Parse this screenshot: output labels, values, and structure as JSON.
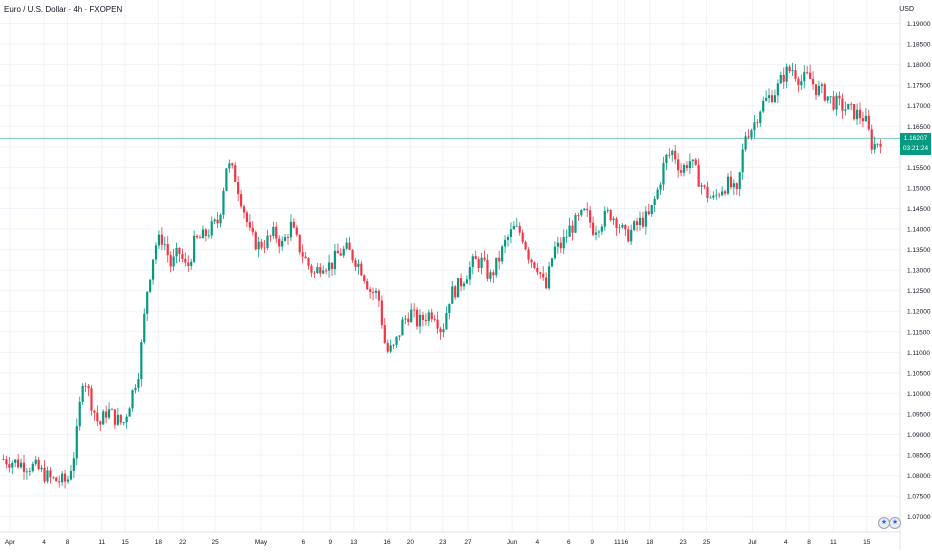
{
  "header": {
    "title": "Euro / U.S. Dollar · 4h · FXOPEN",
    "currency": "USD"
  },
  "price_badge": {
    "price": "1.16207",
    "countdown": "03:21:24"
  },
  "colors": {
    "up": "#089981",
    "down": "#f23645",
    "grid": "#f0f3fa",
    "price_line": "#089981"
  },
  "icons": [
    "us-flag-icon",
    "us-flag-icon"
  ],
  "chart_data": {
    "type": "candlestick",
    "title": "Euro / U.S. Dollar · 4h · FXOPEN",
    "ylim": [
      1.0675,
      1.195
    ],
    "y_ticks": [
      "1.19000",
      "1.18500",
      "1.18000",
      "1.17500",
      "1.17000",
      "1.16500",
      "1.16000",
      "1.15500",
      "1.15000",
      "1.14500",
      "1.14000",
      "1.13500",
      "1.13000",
      "1.12500",
      "1.12000",
      "1.11500",
      "1.11000",
      "1.10500",
      "1.10000",
      "1.09500",
      "1.09000",
      "1.08500",
      "1.08000",
      "1.07500",
      "1.07000"
    ],
    "x_ticks": [
      "Apr",
      "4",
      "8",
      "11",
      "15",
      "18",
      "22",
      "25",
      "May",
      "6",
      "9",
      "13",
      "16",
      "20",
      "23",
      "27",
      "Jun",
      "4",
      "6",
      "9",
      "11",
      "16",
      "18",
      "23",
      "25",
      "Jul",
      "4",
      "8",
      "11",
      "15"
    ],
    "current_price": 1.16207,
    "grid": true,
    "close_path": [
      [
        0,
        1.084
      ],
      [
        4,
        1.082
      ],
      [
        6,
        1.079
      ],
      [
        8,
        1.0785
      ],
      [
        9,
        1.0865
      ],
      [
        10,
        1.105
      ],
      [
        11,
        1.098
      ],
      [
        12,
        1.092
      ],
      [
        13,
        1.096
      ],
      [
        14,
        1.094
      ],
      [
        15,
        1.0925
      ],
      [
        16,
        1.099
      ],
      [
        17,
        1.106
      ],
      [
        18,
        1.125
      ],
      [
        19,
        1.136
      ],
      [
        20,
        1.138
      ],
      [
        21,
        1.131
      ],
      [
        22,
        1.1345
      ],
      [
        23,
        1.13
      ],
      [
        24,
        1.137
      ],
      [
        25,
        1.138
      ],
      [
        26,
        1.14
      ],
      [
        27,
        1.142
      ],
      [
        28,
        1.156
      ],
      [
        29,
        1.153
      ],
      [
        30,
        1.146
      ],
      [
        31,
        1.138
      ],
      [
        32,
        1.136
      ],
      [
        33,
        1.137
      ],
      [
        34,
        1.139
      ],
      [
        35,
        1.136
      ],
      [
        36,
        1.141
      ],
      [
        37,
        1.136
      ],
      [
        38,
        1.132
      ],
      [
        39,
        1.129
      ],
      [
        40,
        1.132
      ],
      [
        41,
        1.131
      ],
      [
        42,
        1.134
      ],
      [
        43,
        1.135
      ],
      [
        44,
        1.133
      ],
      [
        45,
        1.13
      ],
      [
        46,
        1.125
      ],
      [
        47,
        1.124
      ],
      [
        48,
        1.11
      ],
      [
        49,
        1.111
      ],
      [
        50,
        1.117
      ],
      [
        51,
        1.12
      ],
      [
        52,
        1.117
      ],
      [
        53,
        1.119
      ],
      [
        54,
        1.12
      ],
      [
        55,
        1.115
      ],
      [
        56,
        1.124
      ],
      [
        57,
        1.126
      ],
      [
        58,
        1.129
      ],
      [
        59,
        1.132
      ],
      [
        60,
        1.132
      ],
      [
        61,
        1.128
      ],
      [
        62,
        1.132
      ],
      [
        63,
        1.137
      ],
      [
        64,
        1.14
      ],
      [
        65,
        1.139
      ],
      [
        66,
        1.133
      ],
      [
        67,
        1.131
      ],
      [
        68,
        1.125
      ],
      [
        69,
        1.135
      ],
      [
        70,
        1.136
      ],
      [
        71,
        1.14
      ],
      [
        72,
        1.142
      ],
      [
        73,
        1.144
      ],
      [
        74,
        1.14
      ],
      [
        75,
        1.142
      ],
      [
        76,
        1.144
      ],
      [
        77,
        1.142
      ],
      [
        78,
        1.138
      ],
      [
        79,
        1.14
      ],
      [
        80,
        1.142
      ],
      [
        81,
        1.143
      ],
      [
        82,
        1.149
      ],
      [
        83,
        1.157
      ],
      [
        84,
        1.159
      ],
      [
        85,
        1.154
      ],
      [
        86,
        1.157
      ],
      [
        87,
        1.153
      ],
      [
        88,
        1.149
      ],
      [
        89,
        1.147
      ],
      [
        90,
        1.15
      ],
      [
        91,
        1.151
      ],
      [
        92,
        1.148
      ],
      [
        93,
        1.163
      ],
      [
        94,
        1.165
      ],
      [
        95,
        1.17
      ],
      [
        96,
        1.172
      ],
      [
        97,
        1.174
      ],
      [
        98,
        1.178
      ],
      [
        99,
        1.179
      ],
      [
        100,
        1.176
      ],
      [
        101,
        1.177
      ],
      [
        102,
        1.174
      ],
      [
        103,
        1.173
      ],
      [
        104,
        1.171
      ],
      [
        105,
        1.17
      ],
      [
        106,
        1.169
      ],
      [
        107,
        1.168
      ],
      [
        108,
        1.167
      ],
      [
        109,
        1.16
      ],
      [
        110,
        1.162
      ]
    ]
  }
}
